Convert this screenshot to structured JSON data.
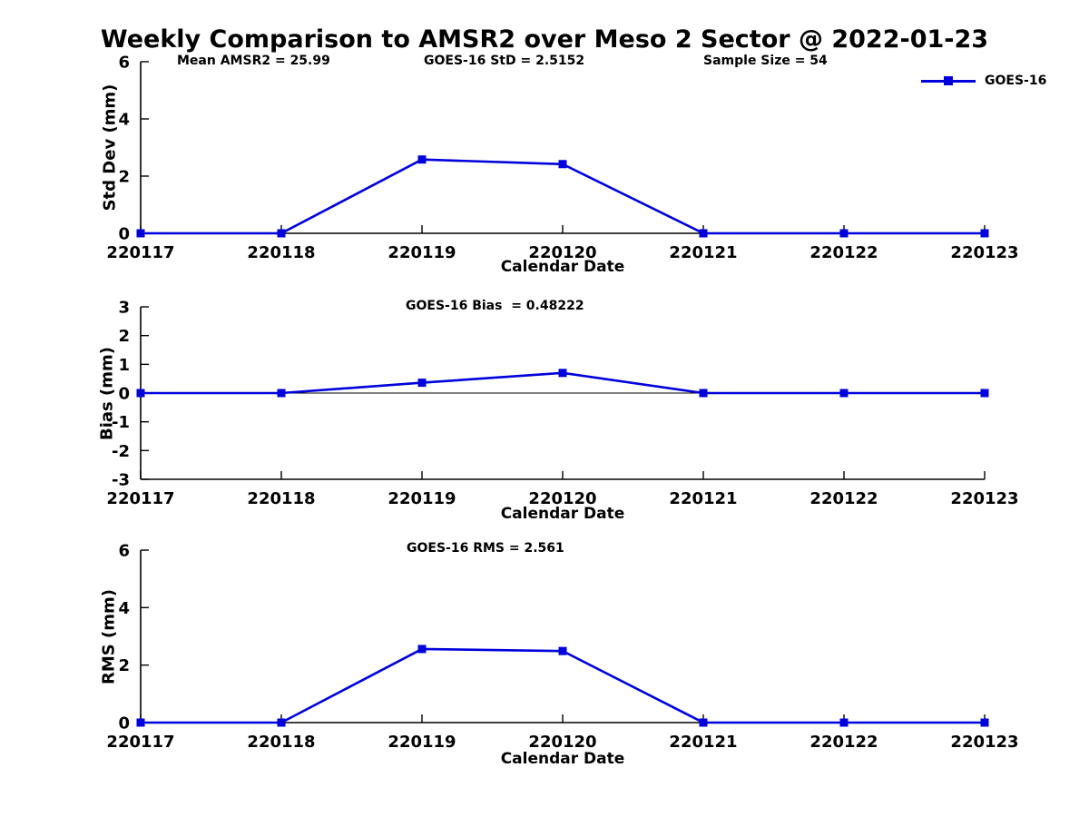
{
  "title": "Weekly Comparison to AMSR2 over Meso 2 Sector @ 2022-01-23",
  "legend": {
    "label": "GOES-16",
    "color": "#0000dd",
    "marker": "square",
    "position": "top-right"
  },
  "chart_data": [
    {
      "type": "line",
      "name": "std-dev",
      "ylabel": "Std Dev (mm)",
      "xlabel": "Calendar Date",
      "ylim": [
        0,
        6
      ],
      "yticks": [
        0,
        2,
        4,
        6
      ],
      "categories": [
        "220117",
        "220118",
        "220119",
        "220120",
        "220121",
        "220122",
        "220123"
      ],
      "annotations": [
        "Mean AMSR2 = 25.99",
        "GOES-16 StD = 2.5152",
        "Sample Size = 54"
      ],
      "zero_line": false,
      "grid": false,
      "series": [
        {
          "name": "GOES-16",
          "values": [
            0,
            0,
            2.58,
            2.42,
            0,
            0,
            0
          ]
        }
      ]
    },
    {
      "type": "line",
      "name": "bias",
      "ylabel": "Bias (mm)",
      "xlabel": "Calendar Date",
      "ylim": [
        -3,
        3
      ],
      "yticks": [
        -3,
        -2,
        -1,
        0,
        1,
        2,
        3
      ],
      "categories": [
        "220117",
        "220118",
        "220119",
        "220120",
        "220121",
        "220122",
        "220123"
      ],
      "annotations": [
        "GOES-16 Bias  = 0.48222"
      ],
      "zero_line": true,
      "grid": false,
      "series": [
        {
          "name": "GOES-16",
          "values": [
            0,
            0,
            0.36,
            0.7,
            0,
            0,
            0
          ]
        }
      ]
    },
    {
      "type": "line",
      "name": "rms",
      "ylabel": "RMS (mm)",
      "xlabel": "Calendar Date",
      "ylim": [
        0,
        6
      ],
      "yticks": [
        0,
        2,
        4,
        6
      ],
      "categories": [
        "220117",
        "220118",
        "220119",
        "220120",
        "220121",
        "220122",
        "220123"
      ],
      "annotations": [
        "GOES-16 RMS = 2.561"
      ],
      "zero_line": false,
      "grid": false,
      "series": [
        {
          "name": "GOES-16",
          "values": [
            0,
            0,
            2.56,
            2.49,
            0,
            0,
            0
          ]
        }
      ]
    }
  ]
}
